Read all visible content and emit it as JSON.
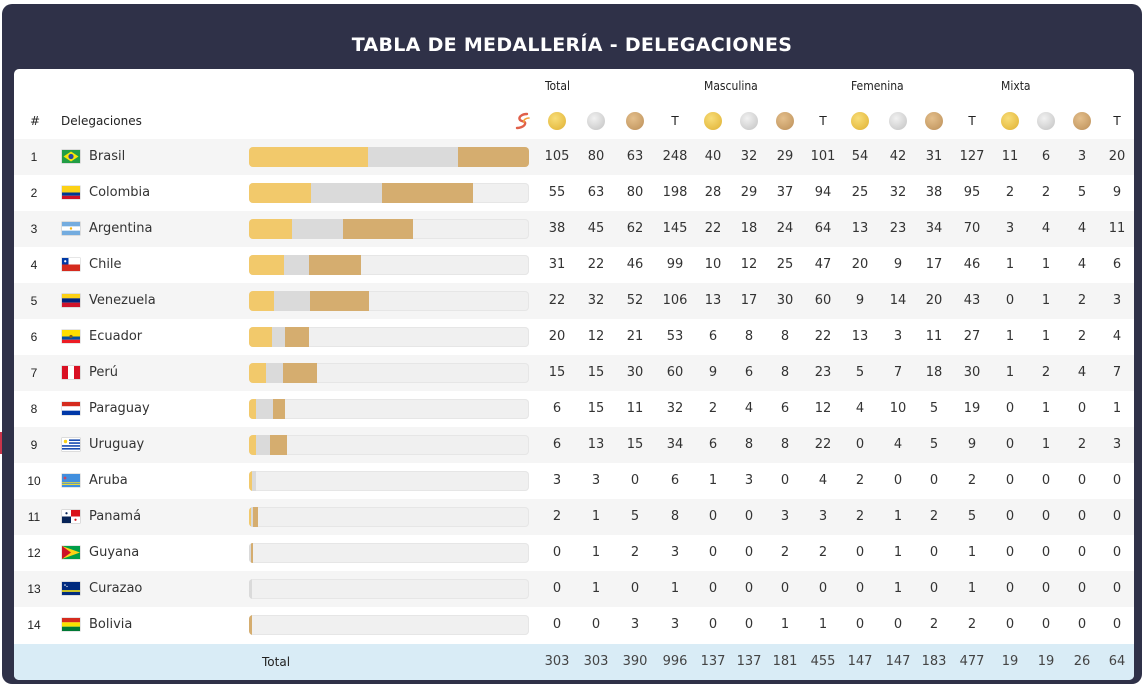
{
  "title": "TABLA DE MEDALLERÍA - DELEGACIONES",
  "header": {
    "rank": "#",
    "delegation": "Delegaciones",
    "groups": [
      "Total",
      "Masculina",
      "Femenina",
      "Mixta"
    ],
    "total_col": "T"
  },
  "colors": {
    "gold": "#f2c96b",
    "silver": "#dadada",
    "bronze": "#d5ad6f",
    "total_row_bg": "#d9ecf6",
    "frame": "#2f3148"
  },
  "icons": [
    "gold-medal-icon",
    "silver-medal-icon",
    "bronze-medal-icon",
    "sport-brand-icon"
  ],
  "rows": [
    {
      "rank": "1",
      "name": "Brasil",
      "flag": "brazil",
      "total": {
        "g": 105,
        "s": 80,
        "b": 63,
        "t": 248
      },
      "men": {
        "g": 40,
        "s": 32,
        "b": 29,
        "t": 101
      },
      "women": {
        "g": 54,
        "s": 42,
        "b": 31,
        "t": 127
      },
      "mixed": {
        "g": 11,
        "s": 6,
        "b": 3,
        "t": 20
      }
    },
    {
      "rank": "2",
      "name": "Colombia",
      "flag": "colombia",
      "total": {
        "g": 55,
        "s": 63,
        "b": 80,
        "t": 198
      },
      "men": {
        "g": 28,
        "s": 29,
        "b": 37,
        "t": 94
      },
      "women": {
        "g": 25,
        "s": 32,
        "b": 38,
        "t": 95
      },
      "mixed": {
        "g": 2,
        "s": 2,
        "b": 5,
        "t": 9
      }
    },
    {
      "rank": "3",
      "name": "Argentina",
      "flag": "argentina",
      "total": {
        "g": 38,
        "s": 45,
        "b": 62,
        "t": 145
      },
      "men": {
        "g": 22,
        "s": 18,
        "b": 24,
        "t": 64
      },
      "women": {
        "g": 13,
        "s": 23,
        "b": 34,
        "t": 70
      },
      "mixed": {
        "g": 3,
        "s": 4,
        "b": 4,
        "t": 11
      }
    },
    {
      "rank": "4",
      "name": "Chile",
      "flag": "chile",
      "total": {
        "g": 31,
        "s": 22,
        "b": 46,
        "t": 99
      },
      "men": {
        "g": 10,
        "s": 12,
        "b": 25,
        "t": 47
      },
      "women": {
        "g": 20,
        "s": 9,
        "b": 17,
        "t": 46
      },
      "mixed": {
        "g": 1,
        "s": 1,
        "b": 4,
        "t": 6
      }
    },
    {
      "rank": "5",
      "name": "Venezuela",
      "flag": "venezuela",
      "total": {
        "g": 22,
        "s": 32,
        "b": 52,
        "t": 106
      },
      "men": {
        "g": 13,
        "s": 17,
        "b": 30,
        "t": 60
      },
      "women": {
        "g": 9,
        "s": 14,
        "b": 20,
        "t": 43
      },
      "mixed": {
        "g": 0,
        "s": 1,
        "b": 2,
        "t": 3
      }
    },
    {
      "rank": "6",
      "name": "Ecuador",
      "flag": "ecuador",
      "total": {
        "g": 20,
        "s": 12,
        "b": 21,
        "t": 53
      },
      "men": {
        "g": 6,
        "s": 8,
        "b": 8,
        "t": 22
      },
      "women": {
        "g": 13,
        "s": 3,
        "b": 11,
        "t": 27
      },
      "mixed": {
        "g": 1,
        "s": 1,
        "b": 2,
        "t": 4
      }
    },
    {
      "rank": "7",
      "name": "Perú",
      "flag": "peru",
      "total": {
        "g": 15,
        "s": 15,
        "b": 30,
        "t": 60
      },
      "men": {
        "g": 9,
        "s": 6,
        "b": 8,
        "t": 23
      },
      "women": {
        "g": 5,
        "s": 7,
        "b": 18,
        "t": 30
      },
      "mixed": {
        "g": 1,
        "s": 2,
        "b": 4,
        "t": 7
      }
    },
    {
      "rank": "8",
      "name": "Paraguay",
      "flag": "paraguay",
      "total": {
        "g": 6,
        "s": 15,
        "b": 11,
        "t": 32
      },
      "men": {
        "g": 2,
        "s": 4,
        "b": 6,
        "t": 12
      },
      "women": {
        "g": 4,
        "s": 10,
        "b": 5,
        "t": 19
      },
      "mixed": {
        "g": 0,
        "s": 1,
        "b": 0,
        "t": 1
      }
    },
    {
      "rank": "9",
      "name": "Uruguay",
      "flag": "uruguay",
      "total": {
        "g": 6,
        "s": 13,
        "b": 15,
        "t": 34
      },
      "men": {
        "g": 6,
        "s": 8,
        "b": 8,
        "t": 22
      },
      "women": {
        "g": 0,
        "s": 4,
        "b": 5,
        "t": 9
      },
      "mixed": {
        "g": 0,
        "s": 1,
        "b": 2,
        "t": 3
      }
    },
    {
      "rank": "10",
      "name": "Aruba",
      "flag": "aruba",
      "total": {
        "g": 3,
        "s": 3,
        "b": 0,
        "t": 6
      },
      "men": {
        "g": 1,
        "s": 3,
        "b": 0,
        "t": 4
      },
      "women": {
        "g": 2,
        "s": 0,
        "b": 0,
        "t": 2
      },
      "mixed": {
        "g": 0,
        "s": 0,
        "b": 0,
        "t": 0
      }
    },
    {
      "rank": "11",
      "name": "Panamá",
      "flag": "panama",
      "total": {
        "g": 2,
        "s": 1,
        "b": 5,
        "t": 8
      },
      "men": {
        "g": 0,
        "s": 0,
        "b": 3,
        "t": 3
      },
      "women": {
        "g": 2,
        "s": 1,
        "b": 2,
        "t": 5
      },
      "mixed": {
        "g": 0,
        "s": 0,
        "b": 0,
        "t": 0
      }
    },
    {
      "rank": "12",
      "name": "Guyana",
      "flag": "guyana",
      "total": {
        "g": 0,
        "s": 1,
        "b": 2,
        "t": 3
      },
      "men": {
        "g": 0,
        "s": 0,
        "b": 2,
        "t": 2
      },
      "women": {
        "g": 0,
        "s": 1,
        "b": 0,
        "t": 1
      },
      "mixed": {
        "g": 0,
        "s": 0,
        "b": 0,
        "t": 0
      }
    },
    {
      "rank": "13",
      "name": "Curazao",
      "flag": "curacao",
      "total": {
        "g": 0,
        "s": 1,
        "b": 0,
        "t": 1
      },
      "men": {
        "g": 0,
        "s": 0,
        "b": 0,
        "t": 0
      },
      "women": {
        "g": 0,
        "s": 1,
        "b": 0,
        "t": 1
      },
      "mixed": {
        "g": 0,
        "s": 0,
        "b": 0,
        "t": 0
      }
    },
    {
      "rank": "14",
      "name": "Bolivia",
      "flag": "bolivia",
      "total": {
        "g": 0,
        "s": 0,
        "b": 3,
        "t": 3
      },
      "men": {
        "g": 0,
        "s": 0,
        "b": 1,
        "t": 1
      },
      "women": {
        "g": 0,
        "s": 0,
        "b": 2,
        "t": 2
      },
      "mixed": {
        "g": 0,
        "s": 0,
        "b": 0,
        "t": 0
      }
    }
  ],
  "totals": {
    "label": "Total",
    "values": [
      303,
      303,
      390,
      996,
      137,
      137,
      181,
      455,
      147,
      147,
      183,
      477,
      19,
      19,
      26,
      64
    ]
  }
}
